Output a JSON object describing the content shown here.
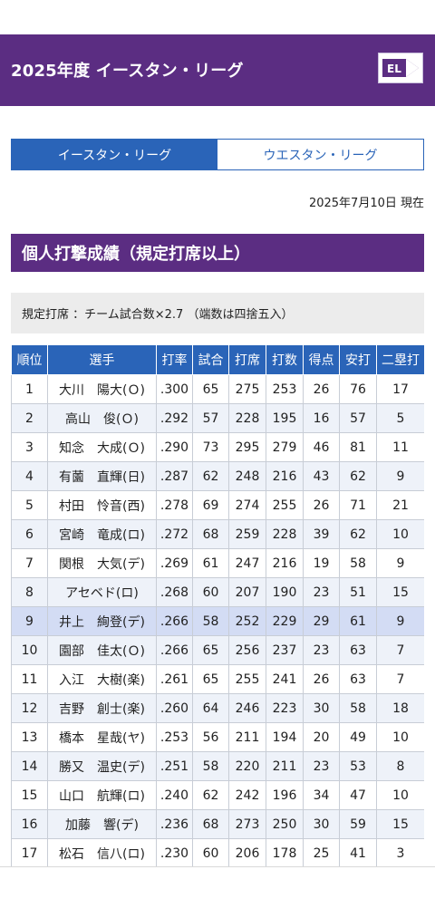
{
  "header": {
    "title": "2025年度 イースタン・リーグ",
    "logo_icon": "eastern-league-logo-icon"
  },
  "tabs": [
    {
      "label": "イースタン・リーグ",
      "active": true
    },
    {
      "label": "ウエスタン・リーグ",
      "active": false
    }
  ],
  "as_of": "2025年7月10日 現在",
  "section_title": "個人打撃成績（規定打席以上）",
  "note": "規定打席 ：チーム試合数×2.7 （端数は四捨五入）",
  "colors": {
    "brand_purple": "#5b2d82",
    "table_blue": "#2a64b8",
    "highlight_row": "#d3dcf4"
  },
  "table": {
    "columns": [
      "順位",
      "選手",
      "打率",
      "試合",
      "打席",
      "打数",
      "得点",
      "安打",
      "二塁打"
    ],
    "rows": [
      [
        "1",
        "大川　陽大(Ｏ)",
        ".300",
        "65",
        "275",
        "253",
        "26",
        "76",
        "17"
      ],
      [
        "2",
        "高山　俊(Ｏ)",
        ".292",
        "57",
        "228",
        "195",
        "16",
        "57",
        "5"
      ],
      [
        "3",
        "知念　大成(Ｏ)",
        ".290",
        "73",
        "295",
        "279",
        "46",
        "81",
        "11"
      ],
      [
        "4",
        "有薗　直輝(日)",
        ".287",
        "62",
        "248",
        "216",
        "43",
        "62",
        "9"
      ],
      [
        "5",
        "村田　怜音(西)",
        ".278",
        "69",
        "274",
        "255",
        "26",
        "71",
        "21"
      ],
      [
        "6",
        "宮崎　竜成(ロ)",
        ".272",
        "68",
        "259",
        "228",
        "39",
        "62",
        "10"
      ],
      [
        "7",
        "関根　大気(デ)",
        ".269",
        "61",
        "247",
        "216",
        "19",
        "58",
        "9"
      ],
      [
        "8",
        "アセベド(ロ)",
        ".268",
        "60",
        "207",
        "190",
        "23",
        "51",
        "15"
      ],
      [
        "9",
        "井上　絢登(デ)",
        ".266",
        "58",
        "252",
        "229",
        "29",
        "61",
        "9"
      ],
      [
        "10",
        "園部　佳太(Ｏ)",
        ".266",
        "65",
        "256",
        "237",
        "23",
        "63",
        "7"
      ],
      [
        "11",
        "入江　大樹(楽)",
        ".261",
        "65",
        "255",
        "241",
        "26",
        "63",
        "7"
      ],
      [
        "12",
        "吉野　創士(楽)",
        ".260",
        "64",
        "246",
        "223",
        "30",
        "58",
        "18"
      ],
      [
        "13",
        "橋本　星哉(ヤ)",
        ".253",
        "56",
        "211",
        "194",
        "20",
        "49",
        "10"
      ],
      [
        "14",
        "勝又　温史(デ)",
        ".251",
        "58",
        "220",
        "211",
        "23",
        "53",
        "8"
      ],
      [
        "15",
        "山口　航輝(ロ)",
        ".240",
        "62",
        "242",
        "196",
        "34",
        "47",
        "10"
      ],
      [
        "16",
        "加藤　響(デ)",
        ".236",
        "68",
        "273",
        "250",
        "30",
        "59",
        "15"
      ],
      [
        "17",
        "松石　信八(ロ)",
        ".230",
        "60",
        "206",
        "178",
        "25",
        "41",
        "3"
      ]
    ],
    "highlighted_row": 9
  }
}
